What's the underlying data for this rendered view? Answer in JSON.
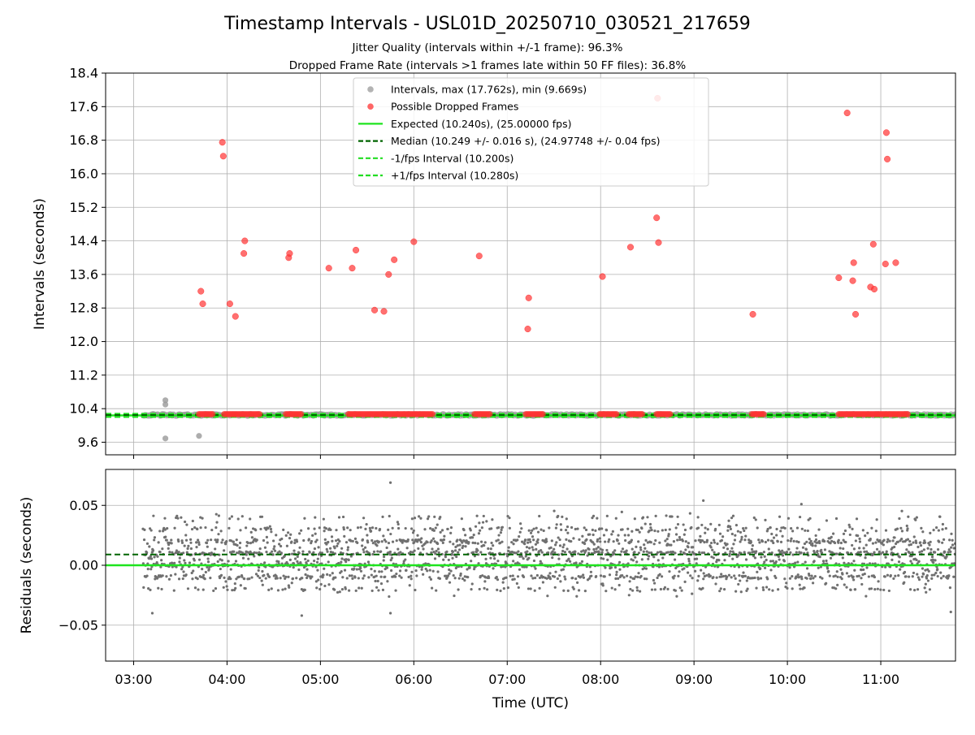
{
  "figure": {
    "title": "Timestamp Intervals - USL01D_20250710_030521_217659",
    "subtitle_1": "Jitter Quality (intervals within +/-1 frame): 96.3%",
    "subtitle_2": "Dropped Frame Rate (intervals >1 frames late within 50 FF files): 36.8%"
  },
  "colors": {
    "intervals": "#999999",
    "dropped": "#ff3333",
    "expected": "#1ee41e",
    "median": "#006400",
    "band": "#22dd22",
    "residual_points": "#707070",
    "grid": "#b0b0b0"
  },
  "chart_data": [
    {
      "type": "scatter",
      "name": "top-panel",
      "ylabel": "Intervals (seconds)",
      "x_axis": "time_utc_hours",
      "xlim": [
        2.7,
        11.8
      ],
      "ylim": [
        9.3,
        18.4
      ],
      "xticks": [
        3,
        4,
        5,
        6,
        7,
        8,
        9,
        10,
        11
      ],
      "xtick_labels": [
        "03:00",
        "04:00",
        "05:00",
        "06:00",
        "07:00",
        "08:00",
        "09:00",
        "10:00",
        "11:00"
      ],
      "yticks": [
        9.6,
        10.4,
        11.2,
        12.0,
        12.8,
        13.6,
        14.4,
        15.2,
        16.0,
        16.8,
        17.6,
        18.4
      ],
      "ytick_labels": [
        "9.6",
        "10.4",
        "11.2",
        "12.0",
        "12.8",
        "13.6",
        "14.4",
        "15.2",
        "16.0",
        "16.8",
        "17.6",
        "18.4"
      ],
      "grid": true,
      "legend": {
        "placement": "upper-center",
        "entries": [
          {
            "label": "Intervals, max (17.762s), min (9.669s)",
            "marker": "dot",
            "color": "#999999"
          },
          {
            "label": "Possible Dropped Frames",
            "marker": "dot",
            "color": "#ff3333"
          },
          {
            "label": "Expected (10.240s), (25.00000 fps)",
            "marker": "solid",
            "color": "#1ee41e"
          },
          {
            "label": "Median (10.249 +/- 0.016 s), (24.97748 +/- 0.04 fps)",
            "marker": "dashed",
            "color": "#006400"
          },
          {
            "label": "-1/fps Interval (10.200s)",
            "marker": "dashed",
            "color": "#22dd22"
          },
          {
            "label": "+1/fps Interval (10.280s)",
            "marker": "dashed",
            "color": "#22dd22"
          }
        ]
      },
      "lines": {
        "expected": 10.24,
        "median": 10.249,
        "minus_1fps": 10.2,
        "plus_1fps": 10.28
      },
      "series": [
        {
          "name": "Intervals",
          "x_start": 3.1,
          "x_end": 11.8,
          "baseline": 10.25,
          "outliers": [
            [
              3.34,
              10.6
            ],
            [
              3.34,
              10.5
            ],
            [
              3.34,
              9.69
            ],
            [
              3.7,
              9.75
            ]
          ]
        },
        {
          "name": "Possible Dropped Frames",
          "baseline_y": 10.27,
          "baseline_runs": [
            [
              3.7,
              3.85
            ],
            [
              3.97,
              4.35
            ],
            [
              4.63,
              4.8
            ],
            [
              5.3,
              6.2
            ],
            [
              6.65,
              6.82
            ],
            [
              7.2,
              7.38
            ],
            [
              7.99,
              8.18
            ],
            [
              8.3,
              8.45
            ],
            [
              8.6,
              8.75
            ],
            [
              9.62,
              9.75
            ],
            [
              10.55,
              11.3
            ]
          ],
          "points": [
            [
              3.95,
              16.75
            ],
            [
              3.96,
              16.42
            ],
            [
              3.72,
              13.2
            ],
            [
              3.74,
              12.9
            ],
            [
              4.03,
              12.9
            ],
            [
              4.09,
              12.6
            ],
            [
              4.18,
              14.1
            ],
            [
              4.19,
              14.4
            ],
            [
              4.66,
              14.0
            ],
            [
              4.67,
              14.1
            ],
            [
              5.09,
              13.75
            ],
            [
              5.34,
              13.75
            ],
            [
              5.38,
              14.18
            ],
            [
              5.58,
              12.75
            ],
            [
              5.68,
              12.72
            ],
            [
              5.73,
              13.6
            ],
            [
              5.79,
              13.95
            ],
            [
              6.0,
              14.38
            ],
            [
              6.7,
              14.04
            ],
            [
              7.22,
              12.3
            ],
            [
              7.23,
              13.04
            ],
            [
              8.02,
              13.55
            ],
            [
              8.32,
              14.25
            ],
            [
              8.6,
              14.95
            ],
            [
              8.62,
              14.36
            ],
            [
              8.61,
              17.8
            ],
            [
              9.63,
              12.65
            ],
            [
              10.55,
              13.52
            ],
            [
              10.64,
              17.45
            ],
            [
              10.71,
              13.88
            ],
            [
              10.7,
              13.45
            ],
            [
              10.73,
              12.65
            ],
            [
              10.89,
              13.3
            ],
            [
              10.92,
              14.32
            ],
            [
              10.93,
              13.25
            ],
            [
              11.05,
              13.85
            ],
            [
              11.06,
              16.98
            ],
            [
              11.07,
              16.35
            ],
            [
              11.16,
              13.88
            ]
          ]
        }
      ]
    },
    {
      "type": "scatter",
      "name": "residuals-panel",
      "xlabel": "Time (UTC)",
      "ylabel": "Residuals (seconds)",
      "x_axis": "time_utc_hours",
      "xlim": [
        2.7,
        11.8
      ],
      "ylim": [
        -0.08,
        0.08
      ],
      "xticks": [
        3,
        4,
        5,
        6,
        7,
        8,
        9,
        10,
        11
      ],
      "xtick_labels": [
        "03:00",
        "04:00",
        "05:00",
        "06:00",
        "07:00",
        "08:00",
        "09:00",
        "10:00",
        "11:00"
      ],
      "yticks": [
        -0.05,
        0.0,
        0.05
      ],
      "ytick_labels": [
        "−0.05",
        "0.00",
        "0.05"
      ],
      "grid": true,
      "lines": {
        "expected": 0.0,
        "median": 0.009
      },
      "series": [
        {
          "name": "Residuals",
          "x_start": 3.1,
          "x_end": 11.8,
          "levels": [
            -0.02,
            -0.01,
            0.0,
            0.01,
            0.02,
            0.03,
            0.04
          ],
          "outliers": [
            [
              5.75,
              0.069
            ],
            [
              9.1,
              0.054
            ],
            [
              10.15,
              0.051
            ],
            [
              3.2,
              -0.04
            ],
            [
              4.8,
              -0.042
            ],
            [
              5.75,
              -0.04
            ],
            [
              11.75,
              -0.039
            ]
          ]
        }
      ]
    }
  ]
}
